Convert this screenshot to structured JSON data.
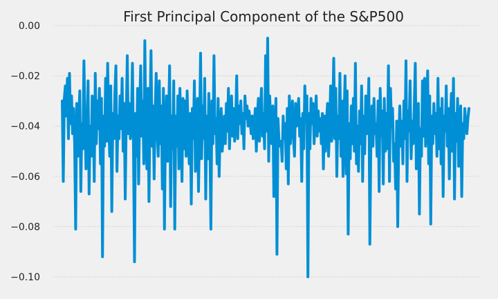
{
  "chart_data": {
    "type": "line",
    "title": "First Principal Component of the S&P500",
    "xlabel": "",
    "ylabel": "",
    "ylim": [
      -0.1,
      0.0
    ],
    "yticks": [
      0.0,
      -0.02,
      -0.04,
      -0.06,
      -0.08,
      -0.1
    ],
    "ytick_labels": [
      "0.00",
      "−0.02",
      "−0.04",
      "−0.06",
      "−0.08",
      "−0.10"
    ],
    "xticks_visible": false,
    "grid": "horizontal",
    "legend": "none",
    "series_color": "#008fd5",
    "series": [
      {
        "values": [
          -0.03,
          -0.062,
          -0.029,
          -0.024,
          -0.036,
          -0.021,
          -0.045,
          -0.019,
          -0.039,
          -0.028,
          -0.043,
          -0.033,
          -0.047,
          -0.081,
          -0.031,
          -0.052,
          -0.037,
          -0.026,
          -0.066,
          -0.039,
          -0.049,
          -0.014,
          -0.037,
          -0.057,
          -0.045,
          -0.022,
          -0.067,
          -0.04,
          -0.052,
          -0.028,
          -0.036,
          -0.062,
          -0.019,
          -0.047,
          -0.03,
          -0.041,
          -0.025,
          -0.055,
          -0.029,
          -0.092,
          -0.036,
          -0.048,
          -0.021,
          -0.046,
          -0.015,
          -0.039,
          -0.052,
          -0.024,
          -0.074,
          -0.035,
          -0.045,
          -0.027,
          -0.016,
          -0.058,
          -0.036,
          -0.045,
          -0.028,
          -0.041,
          -0.021,
          -0.05,
          -0.031,
          -0.069,
          -0.037,
          -0.012,
          -0.043,
          -0.031,
          -0.045,
          -0.038,
          -0.015,
          -0.049,
          -0.094,
          -0.035,
          -0.052,
          -0.025,
          -0.063,
          -0.033,
          -0.016,
          -0.044,
          -0.03,
          -0.055,
          -0.006,
          -0.042,
          -0.057,
          -0.025,
          -0.07,
          -0.036,
          -0.01,
          -0.048,
          -0.032,
          -0.061,
          -0.034,
          -0.019,
          -0.043,
          -0.052,
          -0.022,
          -0.047,
          -0.032,
          -0.065,
          -0.025,
          -0.081,
          -0.04,
          -0.028,
          -0.054,
          -0.037,
          -0.016,
          -0.072,
          -0.036,
          -0.049,
          -0.022,
          -0.081,
          -0.036,
          -0.048,
          -0.028,
          -0.057,
          -0.025,
          -0.04,
          -0.062,
          -0.029,
          -0.049,
          -0.03,
          -0.052,
          -0.026,
          -0.042,
          -0.055,
          -0.035,
          -0.071,
          -0.033,
          -0.045,
          -0.022,
          -0.058,
          -0.037,
          -0.029,
          -0.066,
          -0.041,
          -0.011,
          -0.053,
          -0.032,
          -0.045,
          -0.021,
          -0.069,
          -0.036,
          -0.053,
          -0.027,
          -0.044,
          -0.081,
          -0.03,
          -0.047,
          -0.012,
          -0.043,
          -0.037,
          -0.055,
          -0.029,
          -0.06,
          -0.041,
          -0.033,
          -0.05,
          -0.044,
          -0.036,
          -0.047,
          -0.031,
          -0.042,
          -0.025,
          -0.049,
          -0.037,
          -0.028,
          -0.044,
          -0.033,
          -0.046,
          -0.038,
          -0.02,
          -0.045,
          -0.032,
          -0.039,
          -0.03,
          -0.043,
          -0.035,
          -0.049,
          -0.028,
          -0.037,
          -0.032,
          -0.04,
          -0.034,
          -0.038,
          -0.043,
          -0.036,
          -0.045,
          -0.04,
          -0.033,
          -0.05,
          -0.036,
          -0.029,
          -0.046,
          -0.034,
          -0.025,
          -0.044,
          -0.035,
          -0.049,
          -0.012,
          -0.042,
          -0.005,
          -0.054,
          -0.028,
          -0.04,
          -0.047,
          -0.032,
          -0.068,
          -0.048,
          -0.029,
          -0.091,
          -0.037,
          -0.046,
          -0.048,
          -0.046,
          -0.054,
          -0.036,
          -0.045,
          -0.039,
          -0.057,
          -0.033,
          -0.063,
          -0.028,
          -0.047,
          -0.038,
          -0.03,
          -0.045,
          -0.052,
          -0.031,
          -0.04,
          -0.036,
          -0.029,
          -0.044,
          -0.037,
          -0.062,
          -0.035,
          -0.049,
          -0.024,
          -0.037,
          -0.028,
          -0.1,
          -0.035,
          -0.049,
          -0.029,
          -0.039,
          -0.031,
          -0.047,
          -0.037,
          -0.028,
          -0.044,
          -0.034,
          -0.042,
          -0.037,
          -0.047,
          -0.035,
          -0.057,
          -0.036,
          -0.05,
          -0.038,
          -0.031,
          -0.052,
          -0.04,
          -0.024,
          -0.046,
          -0.037,
          -0.013,
          -0.045,
          -0.025,
          -0.06,
          -0.036,
          -0.045,
          -0.019,
          -0.052,
          -0.03,
          -0.06,
          -0.037,
          -0.02,
          -0.059,
          -0.026,
          -0.083,
          -0.039,
          -0.053,
          -0.032,
          -0.047,
          -0.029,
          -0.05,
          -0.015,
          -0.055,
          -0.04,
          -0.058,
          -0.034,
          -0.047,
          -0.024,
          -0.062,
          -0.036,
          -0.051,
          -0.028,
          -0.043,
          -0.037,
          -0.021,
          -0.087,
          -0.046,
          -0.032,
          -0.048,
          -0.029,
          -0.043,
          -0.039,
          -0.052,
          -0.03,
          -0.066,
          -0.025,
          -0.044,
          -0.034,
          -0.063,
          -0.029,
          -0.05,
          -0.035,
          -0.049,
          -0.016,
          -0.062,
          -0.025,
          -0.04,
          -0.033,
          -0.054,
          -0.047,
          -0.065,
          -0.038,
          -0.08,
          -0.045,
          -0.032,
          -0.048,
          -0.038,
          -0.055,
          -0.03,
          -0.045,
          -0.014,
          -0.062,
          -0.034,
          -0.042,
          -0.022,
          -0.053,
          -0.038,
          -0.047,
          -0.033,
          -0.015,
          -0.057,
          -0.037,
          -0.031,
          -0.075,
          -0.041,
          -0.052,
          -0.022,
          -0.044,
          -0.021,
          -0.048,
          -0.032,
          -0.018,
          -0.055,
          -0.028,
          -0.079,
          -0.036,
          -0.047,
          -0.031,
          -0.043,
          -0.035,
          -0.052,
          -0.021,
          -0.049,
          -0.033,
          -0.055,
          -0.029,
          -0.068,
          -0.036,
          -0.042,
          -0.024,
          -0.048,
          -0.033,
          -0.061,
          -0.038,
          -0.027,
          -0.05,
          -0.021,
          -0.069,
          -0.035,
          -0.046,
          -0.029,
          -0.056,
          -0.04,
          -0.032,
          -0.068,
          -0.039,
          -0.045,
          -0.033,
          -0.04,
          -0.043,
          -0.037,
          -0.033
        ]
      }
    ]
  }
}
